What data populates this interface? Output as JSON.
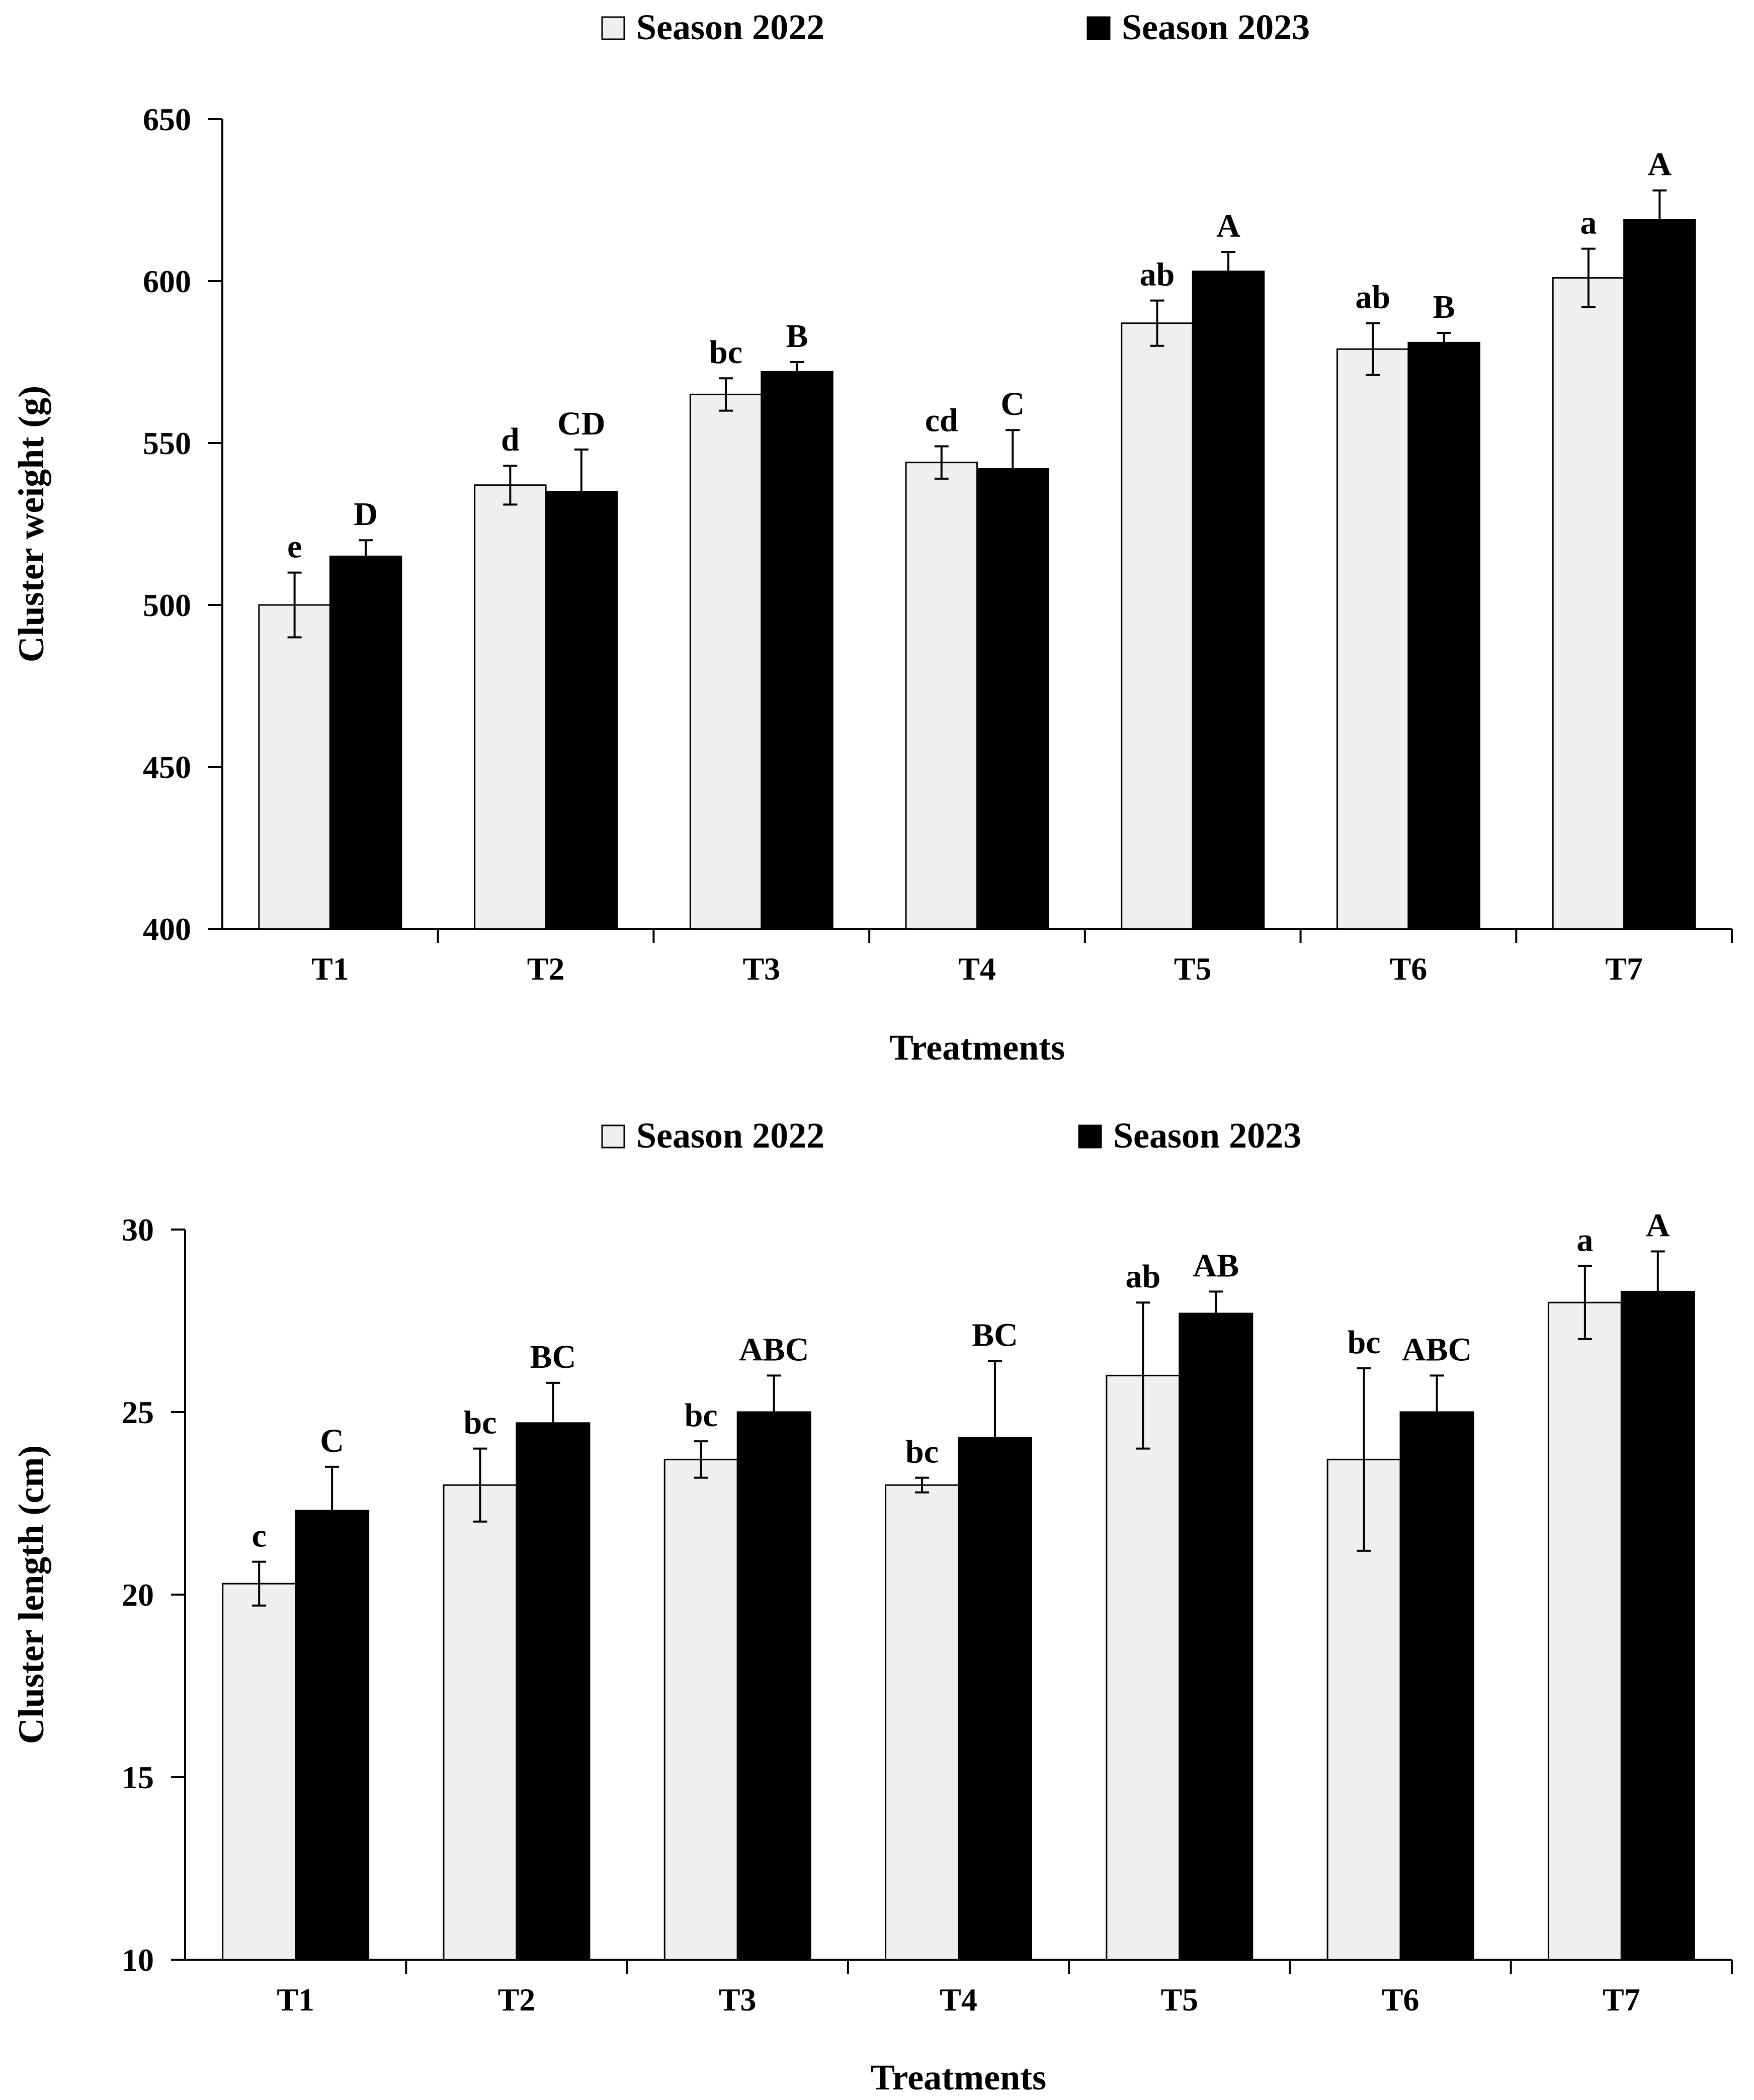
{
  "chart_data": [
    {
      "type": "bar",
      "title": "",
      "xlabel": "Treatments",
      "ylabel": "Cluster weight (g)",
      "ylim": [
        400,
        650
      ],
      "yticks": [
        400,
        450,
        500,
        550,
        600,
        650
      ],
      "grid": false,
      "legend_position": "top-center",
      "categories": [
        "T1",
        "T2",
        "T3",
        "T4",
        "T5",
        "T6",
        "T7"
      ],
      "series": [
        {
          "name": "Season 2022",
          "color": "#efefef",
          "values": [
            500,
            537,
            565,
            544,
            587,
            579,
            601
          ],
          "errors": [
            10,
            6,
            5,
            5,
            7,
            8,
            9
          ],
          "letters": [
            "e",
            "d",
            "bc",
            "cd",
            "ab",
            "ab",
            "a"
          ]
        },
        {
          "name": "Season 2023",
          "color": "#000000",
          "values": [
            515,
            535,
            572,
            542,
            603,
            581,
            619
          ],
          "errors": [
            5,
            13,
            3,
            12,
            6,
            3,
            9
          ],
          "letters": [
            "D",
            "CD",
            "B",
            "C",
            "A",
            "B",
            "A"
          ]
        }
      ]
    },
    {
      "type": "bar",
      "title": "",
      "xlabel": "Treatments",
      "ylabel": "Cluster length (cm)",
      "ylim": [
        10,
        30
      ],
      "yticks": [
        10,
        15,
        20,
        25,
        30
      ],
      "grid": false,
      "legend_position": "top-center",
      "categories": [
        "T1",
        "T2",
        "T3",
        "T4",
        "T5",
        "T6",
        "T7"
      ],
      "series": [
        {
          "name": "Season 2022",
          "color": "#efefef",
          "values": [
            20.3,
            23.0,
            23.7,
            23.0,
            26.0,
            23.7,
            28.0
          ],
          "errors": [
            0.6,
            1.0,
            0.5,
            0.2,
            2.0,
            2.5,
            1.0
          ],
          "letters": [
            "c",
            "bc",
            "bc",
            "bc",
            "ab",
            "bc",
            "a"
          ]
        },
        {
          "name": "Season 2023",
          "color": "#000000",
          "values": [
            22.3,
            24.7,
            25.0,
            24.3,
            27.7,
            25.0,
            28.3
          ],
          "errors": [
            1.2,
            1.1,
            1.0,
            2.1,
            0.6,
            1.0,
            1.1
          ],
          "letters": [
            "C",
            "BC",
            "ABC",
            "BC",
            "AB",
            "ABC",
            "A"
          ]
        }
      ]
    }
  ]
}
